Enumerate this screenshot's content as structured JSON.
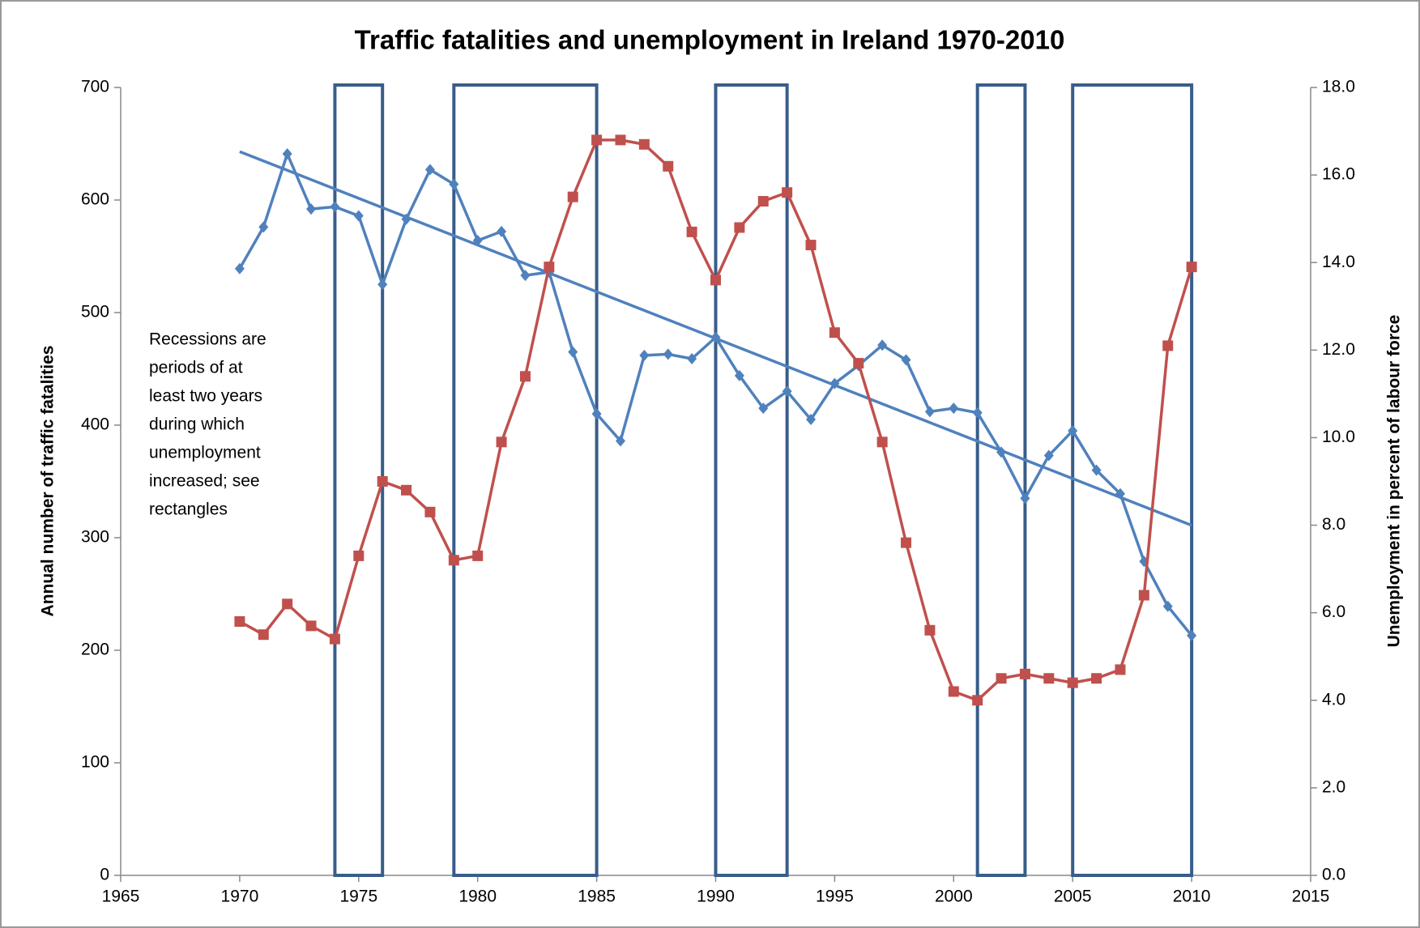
{
  "chart_data": {
    "type": "line",
    "title": "Traffic fatalities and unemployment in Ireland 1970-2010",
    "ylabel": "Annual number of traffic fatalities",
    "y2label": "Unemployment in percent of labour force",
    "annotation": [
      "Recessions are",
      "periods of at",
      "least two years",
      "during which",
      "unemployment",
      "increased; see",
      "rectangles"
    ],
    "x": [
      1970,
      1971,
      1972,
      1973,
      1974,
      1975,
      1976,
      1977,
      1978,
      1979,
      1980,
      1981,
      1982,
      1983,
      1984,
      1985,
      1986,
      1987,
      1988,
      1989,
      1990,
      1991,
      1992,
      1993,
      1994,
      1995,
      1996,
      1997,
      1998,
      1999,
      2000,
      2001,
      2002,
      2003,
      2004,
      2005,
      2006,
      2007,
      2008,
      2009,
      2010
    ],
    "series": [
      {
        "color": "#4f81bd",
        "marker": "diamond",
        "values": [
          539,
          576,
          641,
          592,
          594,
          586,
          525,
          583,
          627,
          614,
          564,
          572,
          533,
          536,
          465,
          410,
          386,
          462,
          463,
          459,
          478,
          444,
          415,
          430,
          405,
          437,
          453,
          471,
          458,
          412,
          415,
          411,
          376,
          335,
          373,
          395,
          360,
          339,
          279,
          239,
          213
        ]
      },
      {
        "color": "#c0504d",
        "marker": "square",
        "axis": "y2",
        "values": [
          5.8,
          5.5,
          6.2,
          5.7,
          5.4,
          7.3,
          9.0,
          8.8,
          8.3,
          7.2,
          7.3,
          9.9,
          11.4,
          13.9,
          15.5,
          16.8,
          16.8,
          16.7,
          16.2,
          14.7,
          13.6,
          14.8,
          15.4,
          15.6,
          14.4,
          12.4,
          11.7,
          9.9,
          7.6,
          5.6,
          4.2,
          4.0,
          4.5,
          4.6,
          4.5,
          4.4,
          4.5,
          4.7,
          6.4,
          12.1,
          13.9
        ]
      }
    ],
    "trendline": {
      "color": "#4f81bd",
      "x": [
        1970,
        2010
      ],
      "values": [
        643,
        311
      ]
    },
    "recessions": {
      "color": "#385d8a",
      "spans": [
        [
          1974,
          1976
        ],
        [
          1979,
          1985
        ],
        [
          1990,
          1993
        ],
        [
          2001,
          2003
        ],
        [
          2005,
          2010
        ]
      ],
      "top": 700
    },
    "xlim": [
      1965,
      2015
    ],
    "xticks": [
      1965,
      1970,
      1975,
      1980,
      1985,
      1990,
      1995,
      2000,
      2005,
      2010,
      2015
    ],
    "ylim": [
      0,
      700
    ],
    "yticks": [
      0,
      100,
      200,
      300,
      400,
      500,
      600,
      700
    ],
    "y2lim": [
      0,
      18
    ],
    "y2ticks": [
      {
        "value": 0,
        "label": "0.0"
      },
      {
        "value": 2,
        "label": "2.0"
      },
      {
        "value": 4,
        "label": "4.0"
      },
      {
        "value": 6,
        "label": "6.0"
      },
      {
        "value": 8,
        "label": "8.0"
      },
      {
        "value": 10,
        "label": "10.0"
      },
      {
        "value": 12,
        "label": "12.0"
      },
      {
        "value": 14,
        "label": "14.0"
      },
      {
        "value": 16,
        "label": "16.0"
      },
      {
        "value": 18,
        "label": "18.0"
      }
    ],
    "grid": false
  }
}
